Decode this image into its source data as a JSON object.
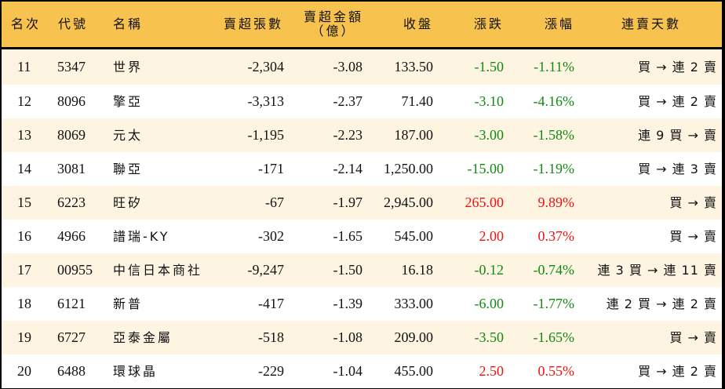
{
  "colors": {
    "header_bg": "#f8c24e",
    "row_odd_bg": "#fdf4e2",
    "row_even_bg": "#ffffff",
    "down": "#108a10",
    "up": "#ee1111",
    "border": "#000000"
  },
  "header": {
    "rank": "名次",
    "code": "代號",
    "name": "名稱",
    "sell_shares": "賣超張數",
    "sell_amount_line1": "賣超金額",
    "sell_amount_line2": "（億）",
    "close": "收盤",
    "change": "漲跌",
    "change_pct": "漲幅",
    "streak": "連賣天數"
  },
  "rows": [
    {
      "rank": "11",
      "code": "5347",
      "name": "世界",
      "sell_shares": "-2,304",
      "sell_amount": "-3.08",
      "close": "133.50",
      "change": "-1.50",
      "change_pct": "-1.11%",
      "direction": "down",
      "streak": "買 → 連 2 賣"
    },
    {
      "rank": "12",
      "code": "8096",
      "name": "擎亞",
      "sell_shares": "-3,313",
      "sell_amount": "-2.37",
      "close": "71.40",
      "change": "-3.10",
      "change_pct": "-4.16%",
      "direction": "down",
      "streak": "買 → 連 2 賣"
    },
    {
      "rank": "13",
      "code": "8069",
      "name": "元太",
      "sell_shares": "-1,195",
      "sell_amount": "-2.23",
      "close": "187.00",
      "change": "-3.00",
      "change_pct": "-1.58%",
      "direction": "down",
      "streak": "連 9 買 → 賣"
    },
    {
      "rank": "14",
      "code": "3081",
      "name": "聯亞",
      "sell_shares": "-171",
      "sell_amount": "-2.14",
      "close": "1,250.00",
      "change": "-15.00",
      "change_pct": "-1.19%",
      "direction": "down",
      "streak": "買 → 連 3 賣"
    },
    {
      "rank": "15",
      "code": "6223",
      "name": "旺矽",
      "sell_shares": "-67",
      "sell_amount": "-1.97",
      "close": "2,945.00",
      "change": "265.00",
      "change_pct": "9.89%",
      "direction": "up",
      "streak": "買 → 賣"
    },
    {
      "rank": "16",
      "code": "4966",
      "name": "譜瑞-KY",
      "sell_shares": "-302",
      "sell_amount": "-1.65",
      "close": "545.00",
      "change": "2.00",
      "change_pct": "0.37%",
      "direction": "up",
      "streak": "買 → 賣"
    },
    {
      "rank": "17",
      "code": "00955",
      "name": "中信日本商社",
      "sell_shares": "-9,247",
      "sell_amount": "-1.50",
      "close": "16.18",
      "change": "-0.12",
      "change_pct": "-0.74%",
      "direction": "down",
      "streak": "連 3 買 → 連 11 賣"
    },
    {
      "rank": "18",
      "code": "6121",
      "name": "新普",
      "sell_shares": "-417",
      "sell_amount": "-1.39",
      "close": "333.00",
      "change": "-6.00",
      "change_pct": "-1.77%",
      "direction": "down",
      "streak": "連 2 買 → 連 2 賣"
    },
    {
      "rank": "19",
      "code": "6727",
      "name": "亞泰金屬",
      "sell_shares": "-518",
      "sell_amount": "-1.08",
      "close": "209.00",
      "change": "-3.50",
      "change_pct": "-1.65%",
      "direction": "down",
      "streak": "買 → 賣"
    },
    {
      "rank": "20",
      "code": "6488",
      "name": "環球晶",
      "sell_shares": "-229",
      "sell_amount": "-1.04",
      "close": "455.00",
      "change": "2.50",
      "change_pct": "0.55%",
      "direction": "up",
      "streak": "買 → 連 2 賣"
    }
  ]
}
